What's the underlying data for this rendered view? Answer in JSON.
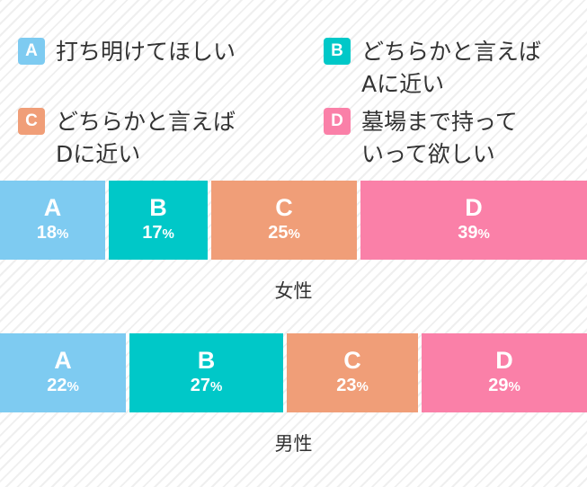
{
  "legend": [
    {
      "key": "A",
      "text": "打ち明けてほしい",
      "color": "#7ecbf1"
    },
    {
      "key": "B",
      "text": "どちらかと言えば\nAに近い",
      "color": "#00c8c8"
    },
    {
      "key": "C",
      "text": "どちらかと言えば\nDに近い",
      "color": "#f09e78"
    },
    {
      "key": "D",
      "text": "墓場まで持って\nいって欲しい",
      "color": "#fa80a8"
    }
  ],
  "chart_data": {
    "type": "bar",
    "stacked": true,
    "orientation": "horizontal",
    "categories": [
      "A",
      "B",
      "C",
      "D"
    ],
    "groups": [
      {
        "name": "女性",
        "values": [
          18,
          17,
          25,
          39
        ]
      },
      {
        "name": "男性",
        "values": [
          22,
          27,
          23,
          29
        ]
      }
    ],
    "unit": "%"
  }
}
